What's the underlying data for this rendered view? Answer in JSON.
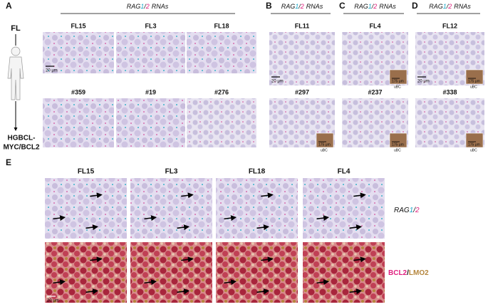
{
  "panel_a": {
    "letter": "A",
    "top_label": "FL",
    "bottom_label_1": "HGBCL-",
    "bottom_label_2": "MYC/BCL2",
    "header": {
      "gene": "RAG",
      "one": "1",
      "slash": "/",
      "two": "2",
      "suffix": "RNAs"
    },
    "row1": [
      "FL15",
      "FL3",
      "FL18"
    ],
    "row2": [
      "#359",
      "#19",
      "#276"
    ],
    "scale_bar": "20 μm"
  },
  "panel_b": {
    "letter": "B",
    "header": {
      "gene": "RAG",
      "one": "1",
      "slash": "/",
      "two": "2",
      "suffix": "RNAs"
    },
    "samples": [
      "FL11",
      "#297"
    ],
    "scale_bar": "20 μm",
    "inset_scale": "175 μm",
    "inset_label": "uBC"
  },
  "panel_c": {
    "letter": "C",
    "header": {
      "gene": "RAG",
      "one": "1",
      "slash": "/",
      "two": "2",
      "suffix": "RNAs"
    },
    "samples": [
      "FL4",
      "#237"
    ],
    "inset_scale": "175 μm",
    "inset_label": "uBC"
  },
  "panel_d": {
    "letter": "D",
    "header": {
      "gene": "RAG",
      "one": "1",
      "slash": "/",
      "two": "2",
      "suffix": "RNAs"
    },
    "samples": [
      "FL12",
      "#338"
    ],
    "scale_bar": "20 μm",
    "inset_scale": "175 μm",
    "inset_label": "uBC"
  },
  "panel_e": {
    "letter": "E",
    "samples": [
      "FL15",
      "FL3",
      "FL18",
      "FL4"
    ],
    "rna_label": {
      "gene": "RAG",
      "one": "1",
      "slash": "/",
      "two": "2"
    },
    "protein_label": {
      "first": "BCL2",
      "slash": "/",
      "second": "LMO2"
    },
    "scale_bar": "20 μm"
  }
}
